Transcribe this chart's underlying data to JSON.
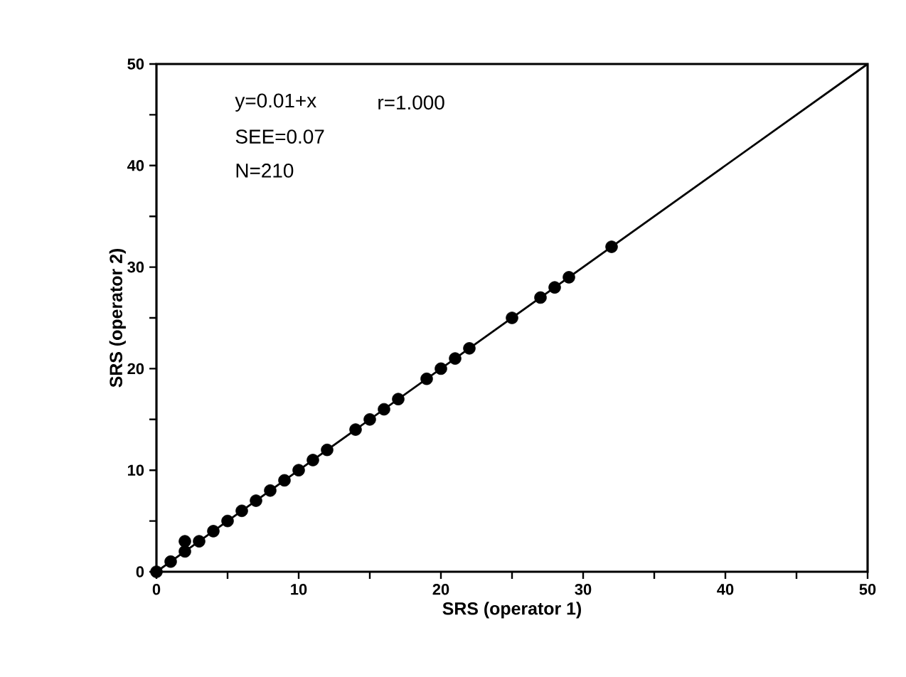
{
  "chart_data": {
    "type": "scatter",
    "xlabel": "SRS  (operator  1)",
    "ylabel": "SRS  (operator  2)",
    "annotations": [
      "y=0.01+x",
      "r=1.000",
      "SEE=0.07",
      "N=210"
    ],
    "xlim": [
      0,
      50
    ],
    "ylim": [
      0,
      50
    ],
    "xticks": [
      0,
      {
        "value": 5,
        "label": null
      },
      10,
      {
        "value": 15,
        "label": null
      },
      20,
      {
        "value": 25,
        "label": null
      },
      30,
      {
        "value": 35,
        "label": null
      },
      40,
      {
        "value": 45,
        "label": null
      },
      50
    ],
    "yticks": [
      0,
      {
        "value": 5,
        "label": null
      },
      10,
      {
        "value": 15,
        "label": null
      },
      20,
      {
        "value": 25,
        "label": null
      },
      30,
      {
        "value": 35,
        "label": null
      },
      40,
      {
        "value": 45,
        "label": null
      },
      50
    ],
    "series": [
      {
        "color": "#000000",
        "marker": "circle",
        "x": [
          0,
          1,
          2,
          2,
          3,
          4,
          5,
          6,
          7,
          8,
          9,
          10,
          11,
          12,
          14,
          15,
          16,
          17,
          19,
          20,
          21,
          22,
          25,
          27,
          28,
          29,
          32
        ],
        "values": [
          0,
          1,
          2,
          3,
          3,
          4,
          5,
          6,
          7,
          8,
          9,
          10,
          11,
          12,
          14,
          15,
          16,
          17,
          19,
          20,
          21,
          22,
          25,
          27,
          28,
          29,
          32
        ]
      },
      {
        "type": "line",
        "color": "#000000",
        "marker": "none",
        "x": [
          0,
          50
        ],
        "values": [
          0,
          50
        ]
      }
    ]
  }
}
